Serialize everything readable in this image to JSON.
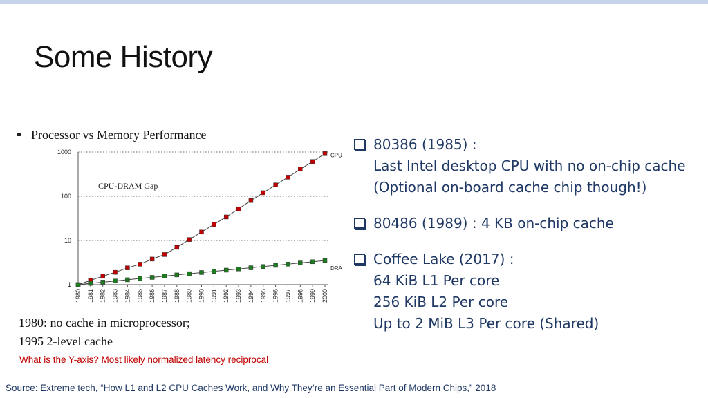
{
  "slide": {
    "title": "Some History",
    "chart_heading": "Processor vs Memory Performance",
    "notes": [
      "1980: no cache in microprocessor;",
      "1995 2-level cache"
    ],
    "yaxis_question": "What is the Y-axis? Most likely normalized latency reciprocal",
    "source": "Source: Extreme tech, “How L1 and L2 CPU Caches Work, and Why They’re an Essential Part of Modern Chips,” 2018"
  },
  "bullets": [
    {
      "lines": [
        "80386 (1985) :",
        "Last Intel desktop CPU with no on-chip cache",
        "(Optional on-board cache chip though!)"
      ]
    },
    {
      "lines": [
        "80486 (1989) : 4 KB on-chip cache"
      ]
    },
    {
      "lines": [
        "Coffee Lake (2017) :",
        "64 KiB L1 Per core",
        "256 KiB L2 Per core",
        "Up to 2 MiB L3 Per core (Shared)"
      ]
    }
  ],
  "chart_data": {
    "type": "line",
    "title": "Processor vs Memory Performance",
    "xlabel": "",
    "ylabel": "",
    "yscale": "log",
    "ylim": [
      1,
      1000
    ],
    "yticks": [
      "1",
      "10",
      "100",
      "1000"
    ],
    "grid": "horizontal dotted",
    "annotation": "CPU-DRAM Gap",
    "x": [
      "1980",
      "1981",
      "1982",
      "1983",
      "1984",
      "1985",
      "1986",
      "1987",
      "1988",
      "1989",
      "1990",
      "1991",
      "1992",
      "1993",
      "1994",
      "1995",
      "1996",
      "1997",
      "1998",
      "1999",
      "2000"
    ],
    "series": [
      {
        "name": "CPU",
        "color": "#c00000",
        "values": [
          1,
          1.25,
          1.55,
          1.9,
          2.4,
          2.9,
          3.8,
          4.8,
          7.0,
          10.5,
          15.5,
          23,
          34,
          52,
          80,
          120,
          180,
          270,
          410,
          610,
          920
        ]
      },
      {
        "name": "DRAM",
        "color": "#1e7a1e",
        "values": [
          1,
          1.07,
          1.14,
          1.21,
          1.29,
          1.38,
          1.46,
          1.56,
          1.66,
          1.77,
          1.88,
          2.0,
          2.13,
          2.27,
          2.41,
          2.57,
          2.74,
          2.91,
          3.1,
          3.3,
          3.52
        ]
      }
    ]
  }
}
